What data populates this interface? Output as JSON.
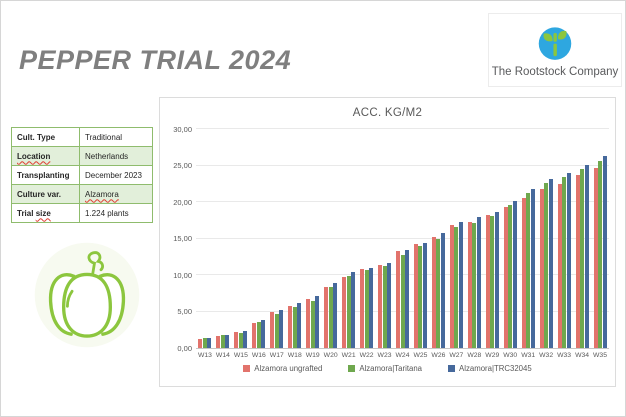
{
  "slide": {
    "title": "PEPPER TRIAL 2024",
    "logo_text": "The Rootstock Company"
  },
  "colors": {
    "title_gray": "#7f7f7f",
    "table_border_green": "#8fbc6d",
    "table_alt_row": "#e2efda",
    "spellcheck_red": "#e03c31",
    "logo_blue": "#2ea7e0",
    "logo_green": "#8cc63e",
    "pepper_green": "#8cc63e",
    "series_red": "#e2736c",
    "series_green": "#6fa84e",
    "series_blue": "#46699c"
  },
  "info_table": {
    "rows": [
      {
        "label": [
          {
            "text": "Cult. Type",
            "wavy": false
          }
        ],
        "value": [
          {
            "text": "Traditional",
            "wavy": false
          }
        ],
        "alt": false
      },
      {
        "label": [
          {
            "text": "Location",
            "wavy": true
          }
        ],
        "value": [
          {
            "text": "Netherlands",
            "wavy": false
          }
        ],
        "alt": true
      },
      {
        "label": [
          {
            "text": "Transplanting",
            "wavy": false
          }
        ],
        "value": [
          {
            "text": "December 2023",
            "wavy": false
          }
        ],
        "alt": false
      },
      {
        "label": [
          {
            "text": "Culture var.",
            "wavy": false
          }
        ],
        "value": [
          {
            "text": "Alzamora",
            "wavy": true
          }
        ],
        "alt": true
      },
      {
        "label": [
          {
            "text": "Trial ",
            "wavy": false
          },
          {
            "text": "size",
            "wavy": true
          }
        ],
        "value": [
          {
            "text": "1.224 plants",
            "wavy": false
          }
        ],
        "alt": false
      }
    ]
  },
  "chart_data": {
    "type": "bar",
    "title": "ACC. KG/M2",
    "categories": [
      "W13",
      "W14",
      "W15",
      "W16",
      "W17",
      "W18",
      "W19",
      "W20",
      "W21",
      "W22",
      "W23",
      "W24",
      "W25",
      "W26",
      "W27",
      "W28",
      "W29",
      "W30",
      "W31",
      "W32",
      "W33",
      "W34",
      "W35"
    ],
    "series": [
      {
        "name": "Alzamora ungrafted",
        "color": "#e2736c",
        "values": [
          1.3,
          1.7,
          2.2,
          3.4,
          4.9,
          5.7,
          6.7,
          8.4,
          9.7,
          10.8,
          11.4,
          13.3,
          14.3,
          15.2,
          16.8,
          17.3,
          18.2,
          19.3,
          20.5,
          21.8,
          22.5,
          23.7,
          24.6
        ]
      },
      {
        "name": "Alzamora|Taritana",
        "color": "#6fa84e",
        "values": [
          1.4,
          1.8,
          2.1,
          3.5,
          4.7,
          5.6,
          6.5,
          8.3,
          9.8,
          10.7,
          11.3,
          12.8,
          14.0,
          15.0,
          16.6,
          17.1,
          18.1,
          19.6,
          21.2,
          22.6,
          23.4,
          24.5,
          25.6
        ]
      },
      {
        "name": "Alzamora|TRC32045",
        "color": "#46699c",
        "values": [
          1.4,
          1.8,
          2.3,
          3.9,
          5.2,
          6.1,
          7.1,
          8.9,
          10.4,
          11.0,
          11.7,
          13.4,
          14.4,
          15.7,
          17.3,
          17.9,
          18.7,
          20.2,
          21.8,
          23.1,
          24.0,
          25.1,
          26.3
        ]
      }
    ],
    "xlabel": "",
    "ylabel": "",
    "ylim": [
      0,
      30
    ],
    "ytick_step": 5,
    "ytick_labels": [
      "0,00",
      "5,00",
      "10,00",
      "15,00",
      "20,00",
      "25,00",
      "30,00"
    ],
    "grid": true,
    "legend_position": "bottom"
  }
}
